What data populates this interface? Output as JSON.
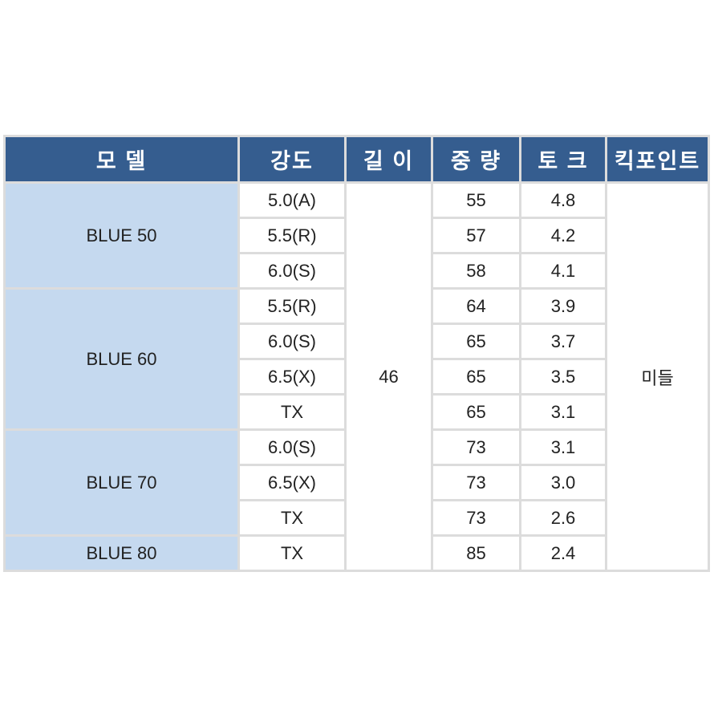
{
  "headers": [
    "모 델",
    "강도",
    "길 이",
    "중 량",
    "토 크",
    "킥포인트"
  ],
  "length": "46",
  "kickpoint": "미들",
  "colors": {
    "header_bg": "#355d8f",
    "model_bg": "#c5d9ef",
    "grid": "#dcdcdc"
  },
  "models": [
    {
      "name": "BLUE 50",
      "rows": [
        {
          "flex": "5.0(A)",
          "weight": "55",
          "torque": "4.8"
        },
        {
          "flex": "5.5(R)",
          "weight": "57",
          "torque": "4.2"
        },
        {
          "flex": "6.0(S)",
          "weight": "58",
          "torque": "4.1"
        }
      ]
    },
    {
      "name": "BLUE 60",
      "rows": [
        {
          "flex": "5.5(R)",
          "weight": "64",
          "torque": "3.9"
        },
        {
          "flex": "6.0(S)",
          "weight": "65",
          "torque": "3.7"
        },
        {
          "flex": "6.5(X)",
          "weight": "65",
          "torque": "3.5"
        },
        {
          "flex": "TX",
          "weight": "65",
          "torque": "3.1"
        }
      ]
    },
    {
      "name": "BLUE 70",
      "rows": [
        {
          "flex": "6.0(S)",
          "weight": "73",
          "torque": "3.1"
        },
        {
          "flex": "6.5(X)",
          "weight": "73",
          "torque": "3.0"
        },
        {
          "flex": "TX",
          "weight": "73",
          "torque": "2.6"
        }
      ]
    },
    {
      "name": "BLUE 80",
      "rows": [
        {
          "flex": "TX",
          "weight": "85",
          "torque": "2.4"
        }
      ]
    }
  ]
}
